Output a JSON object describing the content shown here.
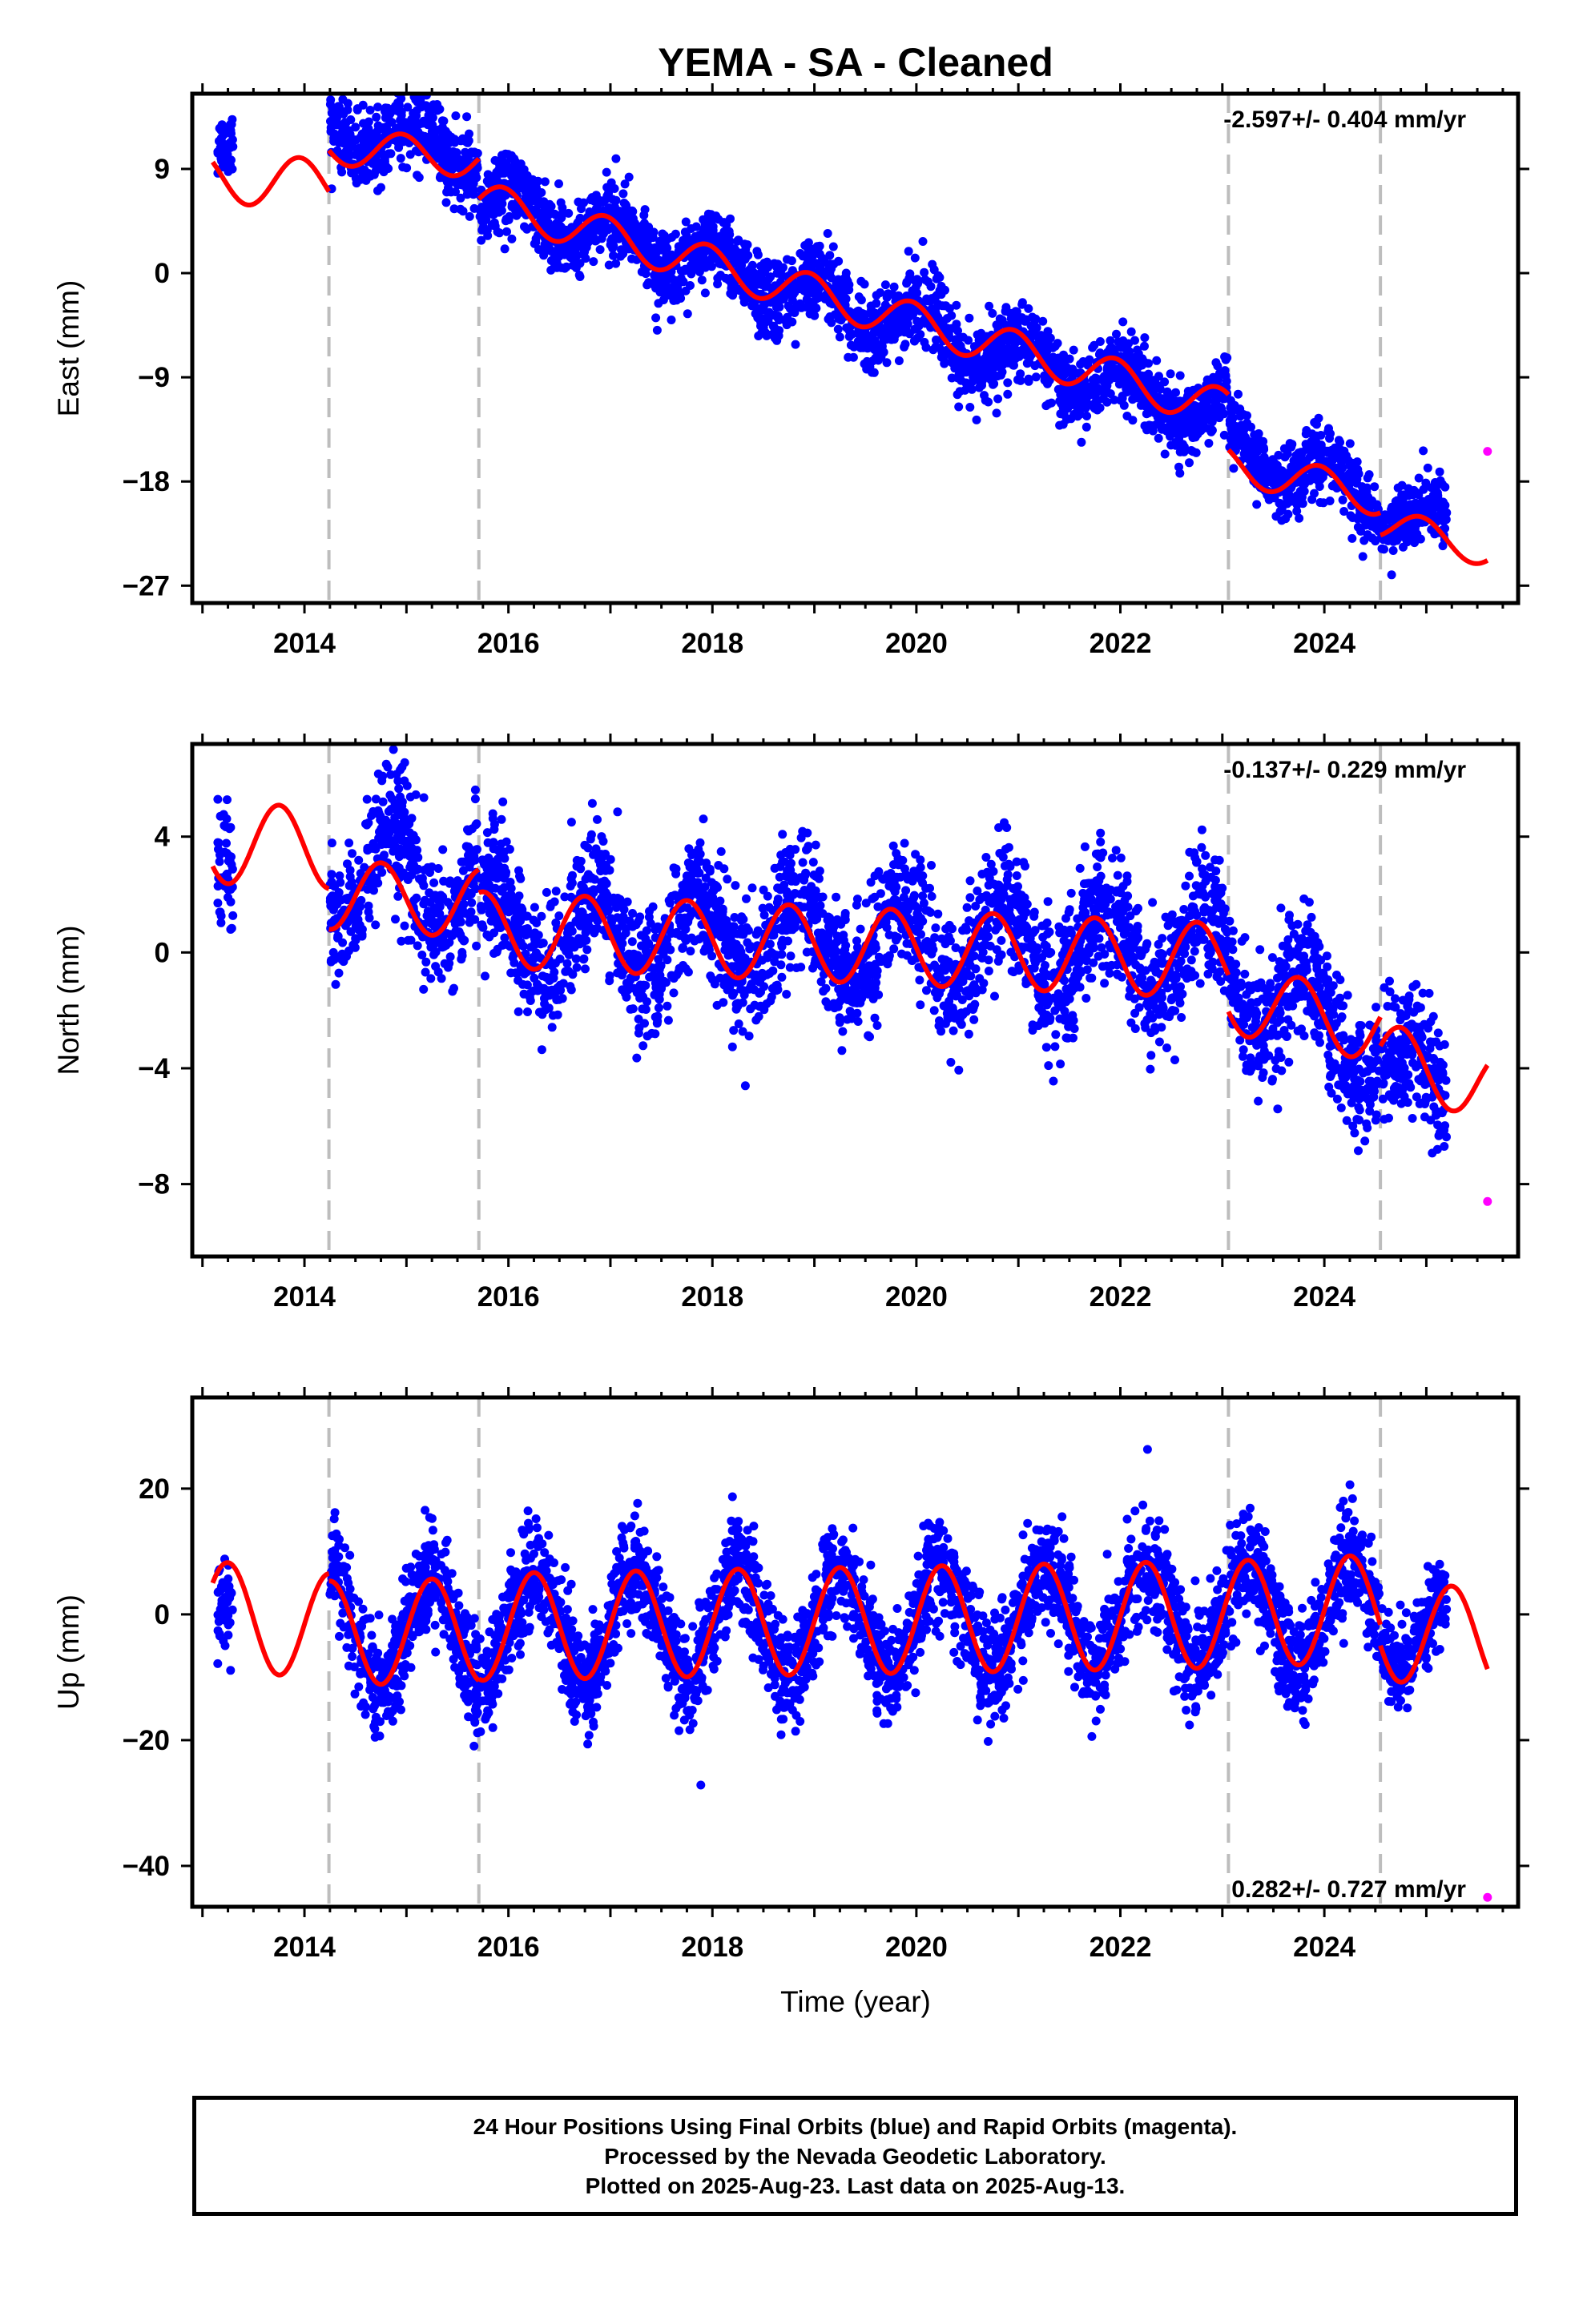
{
  "chart_data": [
    {
      "type": "scatter",
      "title": "YEMA  - SA - Cleaned",
      "ylabel": "East (mm)",
      "xlabel": "",
      "xlim": [
        2012.9,
        2025.9
      ],
      "ylim": [
        -28.5,
        15.5
      ],
      "x_ticks": [
        "2014",
        "2016",
        "2018",
        "2020",
        "2022",
        "2024"
      ],
      "y_ticks": [
        "9",
        "0",
        "−9",
        "−18",
        "−27"
      ],
      "y_tick_values": [
        9,
        0,
        -9,
        -18,
        -27
      ],
      "rate_label": "-2.597+/- 0.404 mm/yr",
      "rate_position": "top-right",
      "grid": false,
      "offset_lines": [
        2014.24,
        2015.71,
        2023.06,
        2024.55
      ],
      "series": [
        {
          "name": "Final Orbits",
          "style": "points",
          "color": "#0000ff",
          "segments": [
            {
              "x": [
                2013.15,
                2013.3
              ],
              "y": [
                10.5,
                11.5
              ],
              "noise": 1.4,
              "amp": 0.5,
              "phase": 0.2
            },
            {
              "x": [
                2014.25,
                2015.7
              ],
              "y": [
                12.5,
                10.5
              ],
              "noise": 1.6,
              "amp": 1.8,
              "phase": 0.2
            },
            {
              "x": [
                2015.72,
                2023.05
              ],
              "y": [
                6.5,
                -12.5
              ],
              "noise": 1.6,
              "amp": 1.8,
              "phase": 0.2
            },
            {
              "x": [
                2023.07,
                2024.54
              ],
              "y": [
                -15,
                -19.5
              ],
              "noise": 1.5,
              "amp": 1.8,
              "phase": 0.2
            },
            {
              "x": [
                2024.56,
                2025.2
              ],
              "y": [
                -21,
                -21.5
              ],
              "noise": 1.3,
              "amp": 1.2,
              "phase": 0.2
            }
          ]
        },
        {
          "name": "Rapid Orbits",
          "style": "points",
          "color": "#ff00ff",
          "x": [
            2025.6
          ],
          "y": [
            -15.4
          ]
        },
        {
          "name": "model",
          "style": "line",
          "color": "#ff0000",
          "segments": [
            {
              "x": [
                2013.1,
                2014.24
              ],
              "y": [
                8.3,
                7.6
              ],
              "amp": 2.2,
              "phase": 0.3
            },
            {
              "x": [
                2014.24,
                2015.71
              ],
              "y": [
                11.0,
                9.8
              ],
              "amp": 1.6,
              "phase": 0.3
            },
            {
              "x": [
                2015.71,
                2023.06
              ],
              "y": [
                6.3,
                -11.8
              ],
              "amp": 1.7,
              "phase": 0.3
            },
            {
              "x": [
                2023.06,
                2024.55
              ],
              "y": [
                -16.5,
                -19.4
              ],
              "amp": 1.6,
              "phase": 0.3
            },
            {
              "x": [
                2024.55,
                2025.6
              ],
              "y": [
                -21.5,
                -24.0
              ],
              "amp": 1.4,
              "phase": 0.3
            }
          ]
        }
      ]
    },
    {
      "type": "scatter",
      "title": "",
      "ylabel": "North (mm)",
      "xlabel": "",
      "xlim": [
        2012.9,
        2025.9
      ],
      "ylim": [
        -10.5,
        7.2
      ],
      "x_ticks": [
        "2014",
        "2016",
        "2018",
        "2020",
        "2022",
        "2024"
      ],
      "y_ticks": [
        "4",
        "0",
        "−4",
        "−8"
      ],
      "y_tick_values": [
        4,
        0,
        -4,
        -8
      ],
      "rate_label": "-0.137+/- 0.229 mm/yr",
      "rate_position": "top-right",
      "grid": false,
      "offset_lines": [
        2014.24,
        2015.71,
        2023.06,
        2024.55
      ],
      "series": [
        {
          "name": "Final Orbits",
          "style": "points",
          "color": "#0000ff",
          "segments": [
            {
              "x": [
                2013.15,
                2013.3
              ],
              "y": [
                3.5,
                3.5
              ],
              "noise": 1.2,
              "amp": 0.6,
              "phase": 0.4
            },
            {
              "x": [
                2014.25,
                2015.7
              ],
              "y": [
                2.8,
                2.2
              ],
              "noise": 1.2,
              "amp": 1.5,
              "phase": 0.4
            },
            {
              "x": [
                2015.72,
                2023.05
              ],
              "y": [
                0.8,
                0.0
              ],
              "noise": 1.1,
              "amp": 1.4,
              "phase": 0.4
            },
            {
              "x": [
                2023.07,
                2024.54
              ],
              "y": [
                -1.0,
                -3.2
              ],
              "noise": 1.1,
              "amp": 1.3,
              "phase": 0.4
            },
            {
              "x": [
                2024.56,
                2025.2
              ],
              "y": [
                -3.8,
                -4.6
              ],
              "noise": 1.0,
              "amp": 0.8,
              "phase": 0.4
            }
          ]
        },
        {
          "name": "Rapid Orbits",
          "style": "points",
          "color": "#ff00ff",
          "x": [
            2025.6
          ],
          "y": [
            -8.6
          ]
        },
        {
          "name": "model",
          "style": "line",
          "color": "#ff0000",
          "segments": [
            {
              "x": [
                2013.1,
                2014.24
              ],
              "y": [
                3.8,
                3.6
              ],
              "amp": 1.4,
              "phase": 0.5
            },
            {
              "x": [
                2014.24,
                2015.71
              ],
              "y": [
                2.0,
                1.7
              ],
              "amp": 1.2,
              "phase": 0.5
            },
            {
              "x": [
                2015.71,
                2023.06
              ],
              "y": [
                0.8,
                -0.3
              ],
              "amp": 1.3,
              "phase": 0.5
            },
            {
              "x": [
                2023.06,
                2024.55
              ],
              "y": [
                -1.6,
                -2.6
              ],
              "amp": 1.2,
              "phase": 0.5
            },
            {
              "x": [
                2024.55,
                2025.6
              ],
              "y": [
                -3.6,
                -4.6
              ],
              "amp": 1.2,
              "phase": 0.5
            }
          ]
        }
      ]
    },
    {
      "type": "scatter",
      "title": "",
      "ylabel": "Up (mm)",
      "xlabel": "Time (year)",
      "xlim": [
        2012.9,
        2025.9
      ],
      "ylim": [
        -46.5,
        34.5
      ],
      "x_ticks": [
        "2014",
        "2016",
        "2018",
        "2020",
        "2022",
        "2024"
      ],
      "y_ticks": [
        "20",
        "0",
        "−20",
        "−40"
      ],
      "y_tick_values": [
        20,
        0,
        -20,
        -40
      ],
      "rate_label": "0.282+/- 0.727 mm/yr",
      "rate_position": "bottom-right",
      "grid": false,
      "offset_lines": [
        2014.24,
        2015.71,
        2023.06,
        2024.55
      ],
      "series": [
        {
          "name": "Final Orbits",
          "style": "points",
          "color": "#0000ff",
          "segments": [
            {
              "x": [
                2013.15,
                2013.3
              ],
              "y": [
                -2.0,
                -4.0
              ],
              "noise": 4.0,
              "amp": 4.0,
              "phase": 0.0
            },
            {
              "x": [
                2014.25,
                2015.7
              ],
              "y": [
                -3.0,
                -2.5
              ],
              "noise": 4.0,
              "amp": 8.5,
              "phase": 0.0
            },
            {
              "x": [
                2015.72,
                2023.05
              ],
              "y": [
                -2.0,
                0.0
              ],
              "noise": 4.2,
              "amp": 8.5,
              "phase": 0.0
            },
            {
              "x": [
                2023.07,
                2024.54
              ],
              "y": [
                0.0,
                0.5
              ],
              "noise": 4.2,
              "amp": 8.5,
              "phase": 0.0
            },
            {
              "x": [
                2024.56,
                2025.2
              ],
              "y": [
                -2.0,
                -2.0
              ],
              "noise": 3.5,
              "amp": 6.0,
              "phase": 0.0
            }
          ]
        },
        {
          "name": "Rapid Orbits",
          "style": "points",
          "color": "#ff00ff",
          "x": [
            2025.6
          ],
          "y": [
            -45
          ]
        },
        {
          "name": "model",
          "style": "line",
          "color": "#ff0000",
          "segments": [
            {
              "x": [
                2013.1,
                2014.24
              ],
              "y": [
                0.0,
                -2.0
              ],
              "amp": 8.5,
              "phase": 0.0
            },
            {
              "x": [
                2014.24,
                2015.71
              ],
              "y": [
                -3.0,
                -2.5
              ],
              "amp": 8.3,
              "phase": 0.0
            },
            {
              "x": [
                2015.71,
                2023.06
              ],
              "y": [
                -2.0,
                0.0
              ],
              "amp": 8.5,
              "phase": 0.0
            },
            {
              "x": [
                2023.06,
                2024.55
              ],
              "y": [
                0.0,
                1.0
              ],
              "amp": 8.5,
              "phase": 0.0
            },
            {
              "x": [
                2024.55,
                2025.6
              ],
              "y": [
                -2.5,
                -4.0
              ],
              "amp": 8.0,
              "phase": 0.0
            }
          ]
        }
      ]
    }
  ],
  "footer": {
    "line1": "24 Hour Positions Using Final Orbits (blue) and Rapid Orbits (magenta).",
    "line2": "Processed by the Nevada Geodetic Laboratory.",
    "line3": "Plotted on 2025-Aug-23. Last data on 2025-Aug-13."
  }
}
